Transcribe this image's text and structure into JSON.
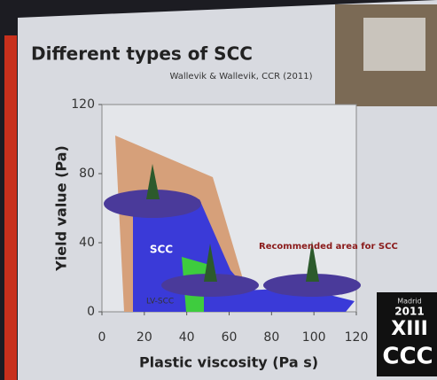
{
  "chart_data": {
    "type": "region",
    "title": "Different types of SCC",
    "subtitle": "Wallevik & Wallevik, CCR (2011)",
    "x_label": "Plastic viscosity (Pa s)",
    "y_label": "Yield value (Pa)",
    "xlim": [
      0,
      120
    ],
    "xticks": [
      0,
      20,
      40,
      60,
      80,
      100,
      120
    ],
    "ylim": [
      0,
      120
    ],
    "yticks": [
      0,
      40,
      80,
      120
    ],
    "annotations": [
      "SCC",
      "Recommended area for SCC",
      "LV-SCC"
    ],
    "logo": {
      "city": "Madrid",
      "year": "2011",
      "edition": "XIII",
      "name": "CCC"
    }
  }
}
